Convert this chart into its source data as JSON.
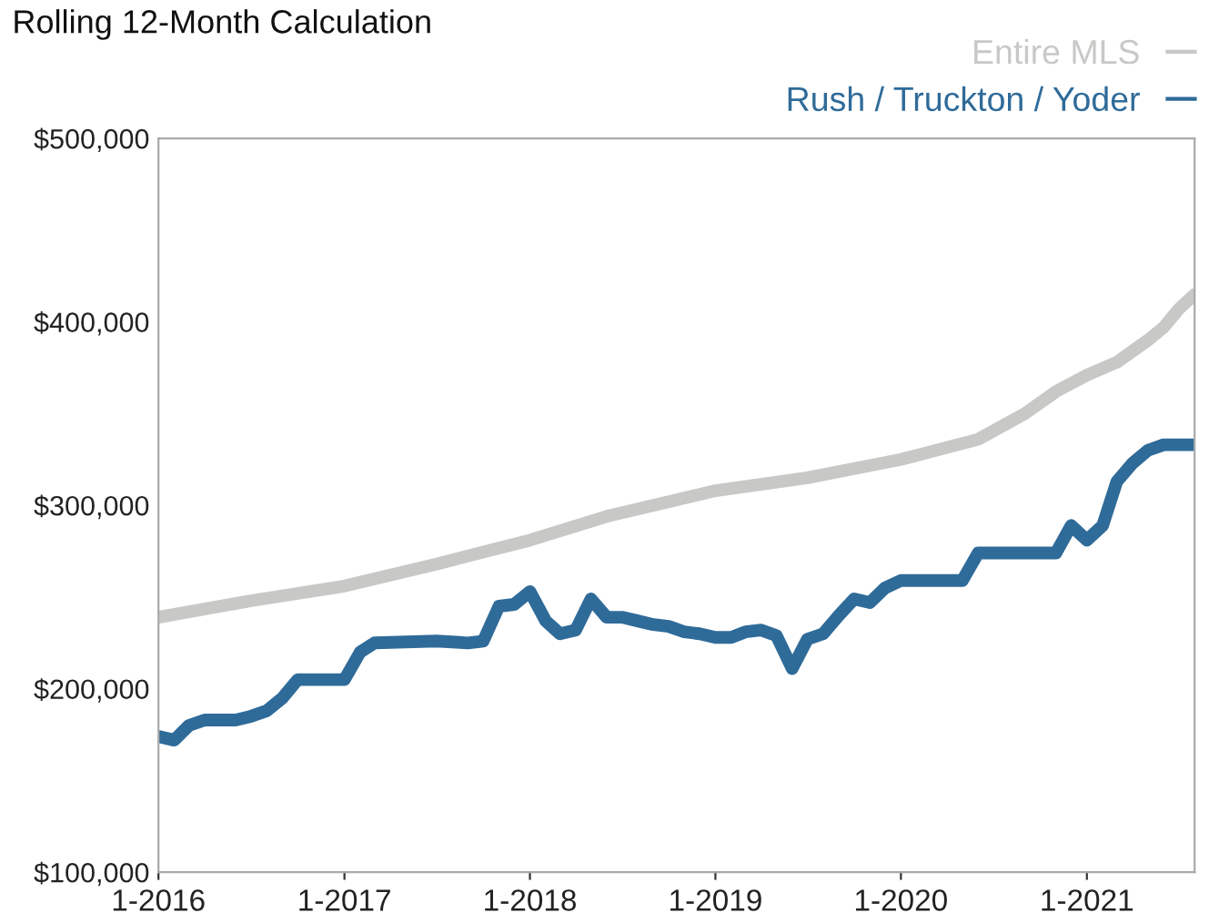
{
  "chart_data": {
    "type": "line",
    "title": "Rolling 12-Month Calculation",
    "x": [
      "2016-01",
      "2016-07",
      "2017-01",
      "2017-07",
      "2018-01",
      "2018-06",
      "2019-01",
      "2019-07",
      "2020-01",
      "2020-06",
      "2020-09",
      "2020-11",
      "2021-01",
      "2021-03",
      "2021-05",
      "2021-06",
      "2021-07",
      "2021-08"
    ],
    "series": [
      {
        "name": "Entire MLS",
        "color": "#c8c8c6",
        "values": [
          239000,
          248000,
          256000,
          268000,
          281000,
          294000,
          308000,
          315000,
          325000,
          336000,
          350000,
          362000,
          371000,
          378000,
          390000,
          397000,
          407000,
          415000
        ]
      },
      {
        "name": "Rush / Truckton / Yoder",
        "color": "#2f6b99",
        "x": [
          "2016-01",
          "2016-02",
          "2016-03",
          "2016-04",
          "2016-06",
          "2016-07",
          "2016-08",
          "2016-09",
          "2016-10",
          "2017-01",
          "2017-02",
          "2017-03",
          "2017-07",
          "2017-09",
          "2017-10",
          "2017-11",
          "2017-12",
          "2018-01",
          "2018-02",
          "2018-03",
          "2018-04",
          "2018-05",
          "2018-06",
          "2018-07",
          "2018-08",
          "2018-09",
          "2018-10",
          "2018-11",
          "2018-12",
          "2019-01",
          "2019-02",
          "2019-03",
          "2019-04",
          "2019-05",
          "2019-06",
          "2019-07",
          "2019-08",
          "2019-09",
          "2019-10",
          "2019-11",
          "2019-12",
          "2020-01",
          "2020-05",
          "2020-06",
          "2020-11",
          "2020-12",
          "2021-01",
          "2021-02",
          "2021-03",
          "2021-04",
          "2021-05",
          "2021-06",
          "2021-08"
        ],
        "values": [
          174000,
          172000,
          180000,
          183000,
          183000,
          185000,
          188000,
          195000,
          205000,
          205000,
          220000,
          225000,
          226000,
          225000,
          226000,
          245000,
          246000,
          253000,
          237000,
          230000,
          232000,
          249000,
          239000,
          239000,
          237000,
          235000,
          234000,
          231000,
          230000,
          228000,
          228000,
          231000,
          232000,
          229000,
          211000,
          227000,
          230000,
          240000,
          249000,
          247000,
          255000,
          259000,
          259000,
          274000,
          274000,
          289000,
          281000,
          289000,
          313000,
          323000,
          330000,
          333000,
          333000
        ]
      }
    ],
    "xlim": [
      "2016-01",
      "2021-08"
    ],
    "xticks": [
      {
        "value": "2016-01",
        "label": "1-2016"
      },
      {
        "value": "2017-01",
        "label": "1-2017"
      },
      {
        "value": "2018-01",
        "label": "1-2018"
      },
      {
        "value": "2019-01",
        "label": "1-2019"
      },
      {
        "value": "2020-01",
        "label": "1-2020"
      },
      {
        "value": "2021-01",
        "label": "1-2021"
      }
    ],
    "ylim": [
      100000,
      500000
    ],
    "yticks": [
      {
        "value": 100000,
        "label": "$100,000"
      },
      {
        "value": 200000,
        "label": "$200,000"
      },
      {
        "value": 300000,
        "label": "$300,000"
      },
      {
        "value": 400000,
        "label": "$400,000"
      },
      {
        "value": 500000,
        "label": "$500,000"
      }
    ],
    "legend": "top right",
    "grid": false
  }
}
